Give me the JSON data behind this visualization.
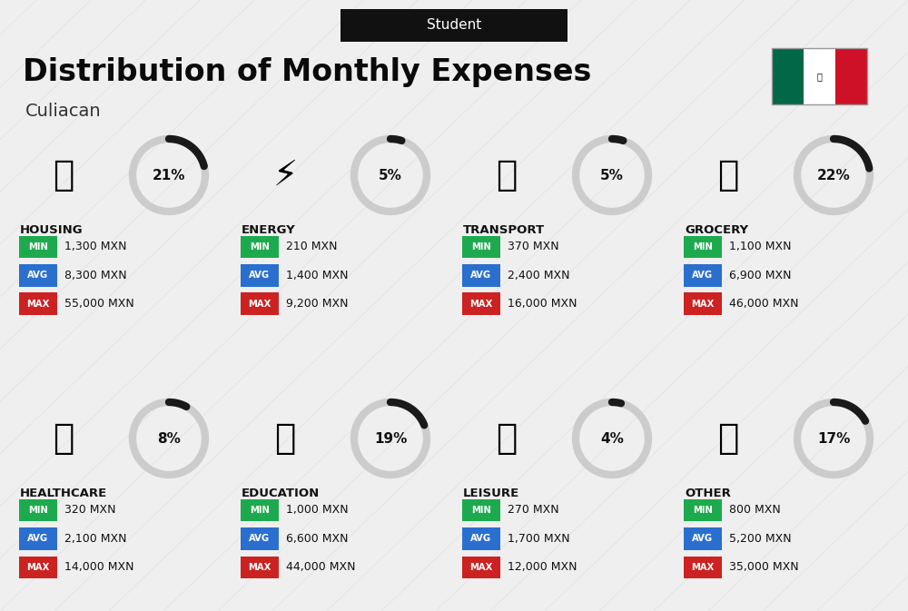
{
  "title": "Distribution of Monthly Expenses",
  "subtitle": "Student",
  "city": "Culiacan",
  "background_color": "#efefef",
  "categories": [
    {
      "name": "HOUSING",
      "pct": 21,
      "min": "1,300 MXN",
      "avg": "8,300 MXN",
      "max": "55,000 MXN",
      "row": 0,
      "col": 0
    },
    {
      "name": "ENERGY",
      "pct": 5,
      "min": "210 MXN",
      "avg": "1,400 MXN",
      "max": "9,200 MXN",
      "row": 0,
      "col": 1
    },
    {
      "name": "TRANSPORT",
      "pct": 5,
      "min": "370 MXN",
      "avg": "2,400 MXN",
      "max": "16,000 MXN",
      "row": 0,
      "col": 2
    },
    {
      "name": "GROCERY",
      "pct": 22,
      "min": "1,100 MXN",
      "avg": "6,900 MXN",
      "max": "46,000 MXN",
      "row": 0,
      "col": 3
    },
    {
      "name": "HEALTHCARE",
      "pct": 8,
      "min": "320 MXN",
      "avg": "2,100 MXN",
      "max": "14,000 MXN",
      "row": 1,
      "col": 0
    },
    {
      "name": "EDUCATION",
      "pct": 19,
      "min": "1,000 MXN",
      "avg": "6,600 MXN",
      "max": "44,000 MXN",
      "row": 1,
      "col": 1
    },
    {
      "name": "LEISURE",
      "pct": 4,
      "min": "270 MXN",
      "avg": "1,700 MXN",
      "max": "12,000 MXN",
      "row": 1,
      "col": 2
    },
    {
      "name": "OTHER",
      "pct": 17,
      "min": "800 MXN",
      "avg": "5,200 MXN",
      "max": "35,000 MXN",
      "row": 1,
      "col": 3
    }
  ],
  "colors": {
    "min_bg": "#1daa4e",
    "avg_bg": "#2b6fce",
    "max_bg": "#cc2222",
    "label_text": "#ffffff",
    "arc_dark": "#1a1a1a",
    "arc_light": "#cccccc",
    "category_name": "#111111",
    "value_text": "#111111",
    "subtitle_bg": "#111111",
    "subtitle_text": "#ffffff"
  }
}
